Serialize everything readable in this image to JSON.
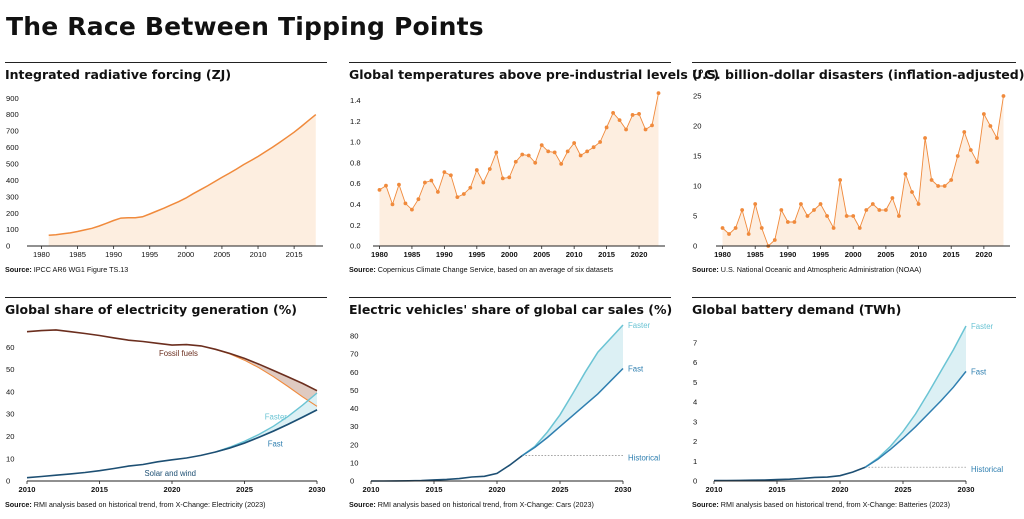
{
  "page": {
    "title": "The Race Between Tipping Points"
  },
  "colors": {
    "orange": "#f08a3c",
    "orange_fill": "#fdeee0",
    "fossil": "#6b2e1e",
    "fossil_fill": "#d9c1b6",
    "fast": "#2f7fb0",
    "faster": "#6bc4d4",
    "band_fill": "#dcf0f4",
    "solar": "#1d4f73",
    "axis": "#222222",
    "historical": "#888888"
  },
  "chart_data": [
    {
      "id": "forcing",
      "type": "area",
      "title": "Integrated radiative forcing (ZJ)",
      "source_label": "Source:",
      "source_text": "IPCC AR6 WG1 Figure TS.13",
      "xlim": [
        1978,
        2019
      ],
      "ylim": [
        0,
        950
      ],
      "xticks": [
        1980,
        1985,
        1990,
        1995,
        2000,
        2005,
        2010,
        2015
      ],
      "yticks": [
        0,
        100,
        200,
        300,
        400,
        500,
        600,
        700,
        800,
        900
      ],
      "x": [
        1981,
        1982,
        1983,
        1984,
        1985,
        1986,
        1987,
        1988,
        1989,
        1990,
        1991,
        1992,
        1993,
        1994,
        1995,
        1996,
        1997,
        1998,
        1999,
        2000,
        2001,
        2002,
        2003,
        2004,
        2005,
        2006,
        2007,
        2008,
        2009,
        2010,
        2011,
        2012,
        2013,
        2014,
        2015,
        2016,
        2017,
        2018
      ],
      "y": [
        65,
        69,
        74,
        80,
        88,
        98,
        108,
        122,
        138,
        155,
        170,
        172,
        172,
        178,
        195,
        213,
        231,
        251,
        270,
        292,
        318,
        342,
        366,
        392,
        418,
        442,
        468,
        496,
        520,
        545,
        573,
        601,
        631,
        662,
        693,
        728,
        765,
        800
      ]
    },
    {
      "id": "temps",
      "type": "line",
      "title": "Global temperatures above pre-industrial levels (°C)",
      "source_label": "Source:",
      "source_text": "Copernicus Climate Change Service, based on an average of six datasets",
      "xlim": [
        1979,
        2024
      ],
      "ylim": [
        0,
        1.5
      ],
      "xticks": [
        1980,
        1985,
        1990,
        1995,
        2000,
        2005,
        2010,
        2015,
        2020
      ],
      "yticks": [
        0.0,
        0.2,
        0.4,
        0.6,
        0.8,
        1.0,
        1.2,
        1.4
      ],
      "ytick_labels": [
        "0.0",
        "0.2",
        "0.4",
        "0.6",
        "0.8",
        "1.0",
        "1.2",
        "1.4"
      ],
      "x": [
        1980,
        1981,
        1982,
        1983,
        1984,
        1985,
        1986,
        1987,
        1988,
        1989,
        1990,
        1991,
        1992,
        1993,
        1994,
        1995,
        1996,
        1997,
        1998,
        1999,
        2000,
        2001,
        2002,
        2003,
        2004,
        2005,
        2006,
        2007,
        2008,
        2009,
        2010,
        2011,
        2012,
        2013,
        2014,
        2015,
        2016,
        2017,
        2018,
        2019,
        2020,
        2021,
        2022,
        2023
      ],
      "y": [
        0.54,
        0.58,
        0.4,
        0.59,
        0.41,
        0.35,
        0.45,
        0.61,
        0.63,
        0.52,
        0.71,
        0.68,
        0.47,
        0.5,
        0.56,
        0.73,
        0.61,
        0.74,
        0.9,
        0.65,
        0.66,
        0.81,
        0.88,
        0.87,
        0.8,
        0.97,
        0.91,
        0.9,
        0.79,
        0.91,
        0.99,
        0.87,
        0.91,
        0.95,
        1.0,
        1.14,
        1.28,
        1.21,
        1.12,
        1.26,
        1.27,
        1.12,
        1.16,
        1.47
      ]
    },
    {
      "id": "disasters",
      "type": "line",
      "title": "U.S. billion-dollar disasters (inflation-adjusted)",
      "source_label": "Source:",
      "source_text": "U.S. National Oceanic and Atmospheric Administration (NOAA)",
      "xlim": [
        1979,
        2024
      ],
      "ylim": [
        0,
        26
      ],
      "xticks": [
        1980,
        1985,
        1990,
        1995,
        2000,
        2005,
        2010,
        2015,
        2020
      ],
      "yticks": [
        0,
        5,
        10,
        15,
        20,
        25
      ],
      "x": [
        1980,
        1981,
        1982,
        1983,
        1984,
        1985,
        1986,
        1987,
        1988,
        1989,
        1990,
        1991,
        1992,
        1993,
        1994,
        1995,
        1996,
        1997,
        1998,
        1999,
        2000,
        2001,
        2002,
        2003,
        2004,
        2005,
        2006,
        2007,
        2008,
        2009,
        2010,
        2011,
        2012,
        2013,
        2014,
        2015,
        2016,
        2017,
        2018,
        2019,
        2020,
        2021,
        2022,
        2023
      ],
      "y": [
        3,
        2,
        3,
        6,
        2,
        7,
        3,
        0,
        1,
        6,
        4,
        4,
        7,
        5,
        6,
        7,
        5,
        3,
        11,
        5,
        5,
        3,
        6,
        7,
        6,
        6,
        8,
        5,
        12,
        9,
        7,
        18,
        11,
        10,
        10,
        11,
        15,
        19,
        16,
        14,
        22,
        20,
        18,
        25
      ]
    },
    {
      "id": "electricity",
      "type": "line",
      "title": "Global share of electricity generation (%)",
      "source_label": "Source:",
      "source_text": "RMI analysis based on historical trend, from X-Change: Electricity (2023)",
      "xlim": [
        2010,
        2030
      ],
      "ylim": [
        0,
        70
      ],
      "xticks": [
        2010,
        2015,
        2020,
        2025,
        2030
      ],
      "yticks": [
        0,
        10,
        20,
        30,
        40,
        50,
        60
      ],
      "series": [
        {
          "name": "Fossil fuels",
          "x": [
            2010,
            2011,
            2012,
            2013,
            2014,
            2015,
            2016,
            2017,
            2018,
            2019,
            2020,
            2021,
            2022,
            2023,
            2024,
            2025,
            2026,
            2027,
            2028,
            2029,
            2030
          ],
          "y": [
            67,
            67.5,
            67.8,
            67,
            66.2,
            65.3,
            64.2,
            63.2,
            62.6,
            61.8,
            61,
            61.2,
            60.6,
            59.1,
            57.2,
            55,
            52.4,
            49.6,
            46.7,
            43.8,
            40.5
          ]
        },
        {
          "name": "Fossil fuels (faster)",
          "x": [
            2023,
            2024,
            2025,
            2026,
            2027,
            2028,
            2029,
            2030
          ],
          "y": [
            59.1,
            57,
            54.2,
            50.8,
            46.8,
            42.4,
            37.8,
            33.5
          ]
        },
        {
          "name": "Solar and wind",
          "x": [
            2010,
            2011,
            2012,
            2013,
            2014,
            2015,
            2016,
            2017,
            2018,
            2019,
            2020,
            2021,
            2022,
            2023,
            2024,
            2025,
            2026,
            2027,
            2028,
            2029,
            2030
          ],
          "y": [
            1.5,
            2,
            2.6,
            3.2,
            3.8,
            4.6,
            5.6,
            6.7,
            7.4,
            8.6,
            9.5,
            10.3,
            11.5,
            13,
            14.8,
            17,
            19.6,
            22.4,
            25.4,
            28.6,
            31.9
          ]
        },
        {
          "name": "Fast",
          "x": [
            2023,
            2024,
            2025,
            2026,
            2027,
            2028,
            2029,
            2030
          ],
          "y": [
            13,
            14.9,
            17.1,
            19.7,
            22.5,
            25.5,
            28.7,
            32
          ]
        },
        {
          "name": "Faster",
          "x": [
            2023,
            2024,
            2025,
            2026,
            2027,
            2028,
            2029,
            2030
          ],
          "y": [
            13,
            15.2,
            17.8,
            20.9,
            24.6,
            29,
            34,
            39.5
          ]
        }
      ],
      "labels": [
        "Fossil fuels",
        "Faster",
        "Fast",
        "Solar and wind"
      ]
    },
    {
      "id": "ev",
      "type": "line",
      "title": "Electric vehicles' share of global car sales (%)",
      "source_label": "Source:",
      "source_text": "RMI analysis based on historical trend, from X-Change: Cars (2023)",
      "xlim": [
        2010,
        2030
      ],
      "ylim": [
        0,
        86
      ],
      "xticks": [
        2010,
        2015,
        2020,
        2025,
        2030
      ],
      "yticks": [
        0,
        10,
        20,
        30,
        40,
        50,
        60,
        70,
        80
      ],
      "series": [
        {
          "name": "Historical",
          "x": [
            2010,
            2011,
            2012,
            2013,
            2014,
            2015,
            2016,
            2017,
            2018,
            2019,
            2020,
            2021,
            2022
          ],
          "y": [
            0.01,
            0.02,
            0.05,
            0.1,
            0.2,
            0.6,
            0.9,
            1.3,
            2.2,
            2.6,
            4.2,
            8.7,
            14
          ]
        },
        {
          "name": "Fast",
          "x": [
            2022,
            2023,
            2024,
            2025,
            2026,
            2027,
            2028,
            2029,
            2030
          ],
          "y": [
            14,
            18.5,
            24,
            30,
            36,
            42,
            48,
            55,
            62
          ]
        },
        {
          "name": "Faster",
          "x": [
            2022,
            2023,
            2024,
            2025,
            2026,
            2027,
            2028,
            2029,
            2030
          ],
          "y": [
            14,
            19,
            27,
            36.5,
            48,
            60,
            71,
            78.5,
            86
          ]
        }
      ],
      "labels": [
        "Faster",
        "Fast",
        "Historical"
      ]
    },
    {
      "id": "battery",
      "type": "line",
      "title": "Global battery demand (TWh)",
      "source_label": "Source:",
      "source_text": "RMI analysis based on historical trend, from X-Change: Batteries (2023)",
      "xlim": [
        2010,
        2030
      ],
      "ylim": [
        0,
        7.9
      ],
      "xticks": [
        2010,
        2015,
        2020,
        2025,
        2030
      ],
      "yticks": [
        0,
        1,
        2,
        3,
        4,
        5,
        6,
        7
      ],
      "series": [
        {
          "name": "Historical",
          "x": [
            2010,
            2011,
            2012,
            2013,
            2014,
            2015,
            2016,
            2017,
            2018,
            2019,
            2020,
            2021,
            2022
          ],
          "y": [
            0.02,
            0.025,
            0.03,
            0.04,
            0.05,
            0.07,
            0.09,
            0.13,
            0.18,
            0.2,
            0.27,
            0.45,
            0.7
          ]
        },
        {
          "name": "Fast",
          "x": [
            2022,
            2023,
            2024,
            2025,
            2026,
            2027,
            2028,
            2029,
            2030
          ],
          "y": [
            0.7,
            1.1,
            1.6,
            2.15,
            2.75,
            3.4,
            4.05,
            4.75,
            5.55
          ]
        },
        {
          "name": "Faster",
          "x": [
            2022,
            2023,
            2024,
            2025,
            2026,
            2027,
            2028,
            2029,
            2030
          ],
          "y": [
            0.7,
            1.15,
            1.75,
            2.5,
            3.4,
            4.45,
            5.55,
            6.65,
            7.85
          ]
        }
      ],
      "labels": [
        "Faster",
        "Fast",
        "Historical"
      ]
    }
  ]
}
